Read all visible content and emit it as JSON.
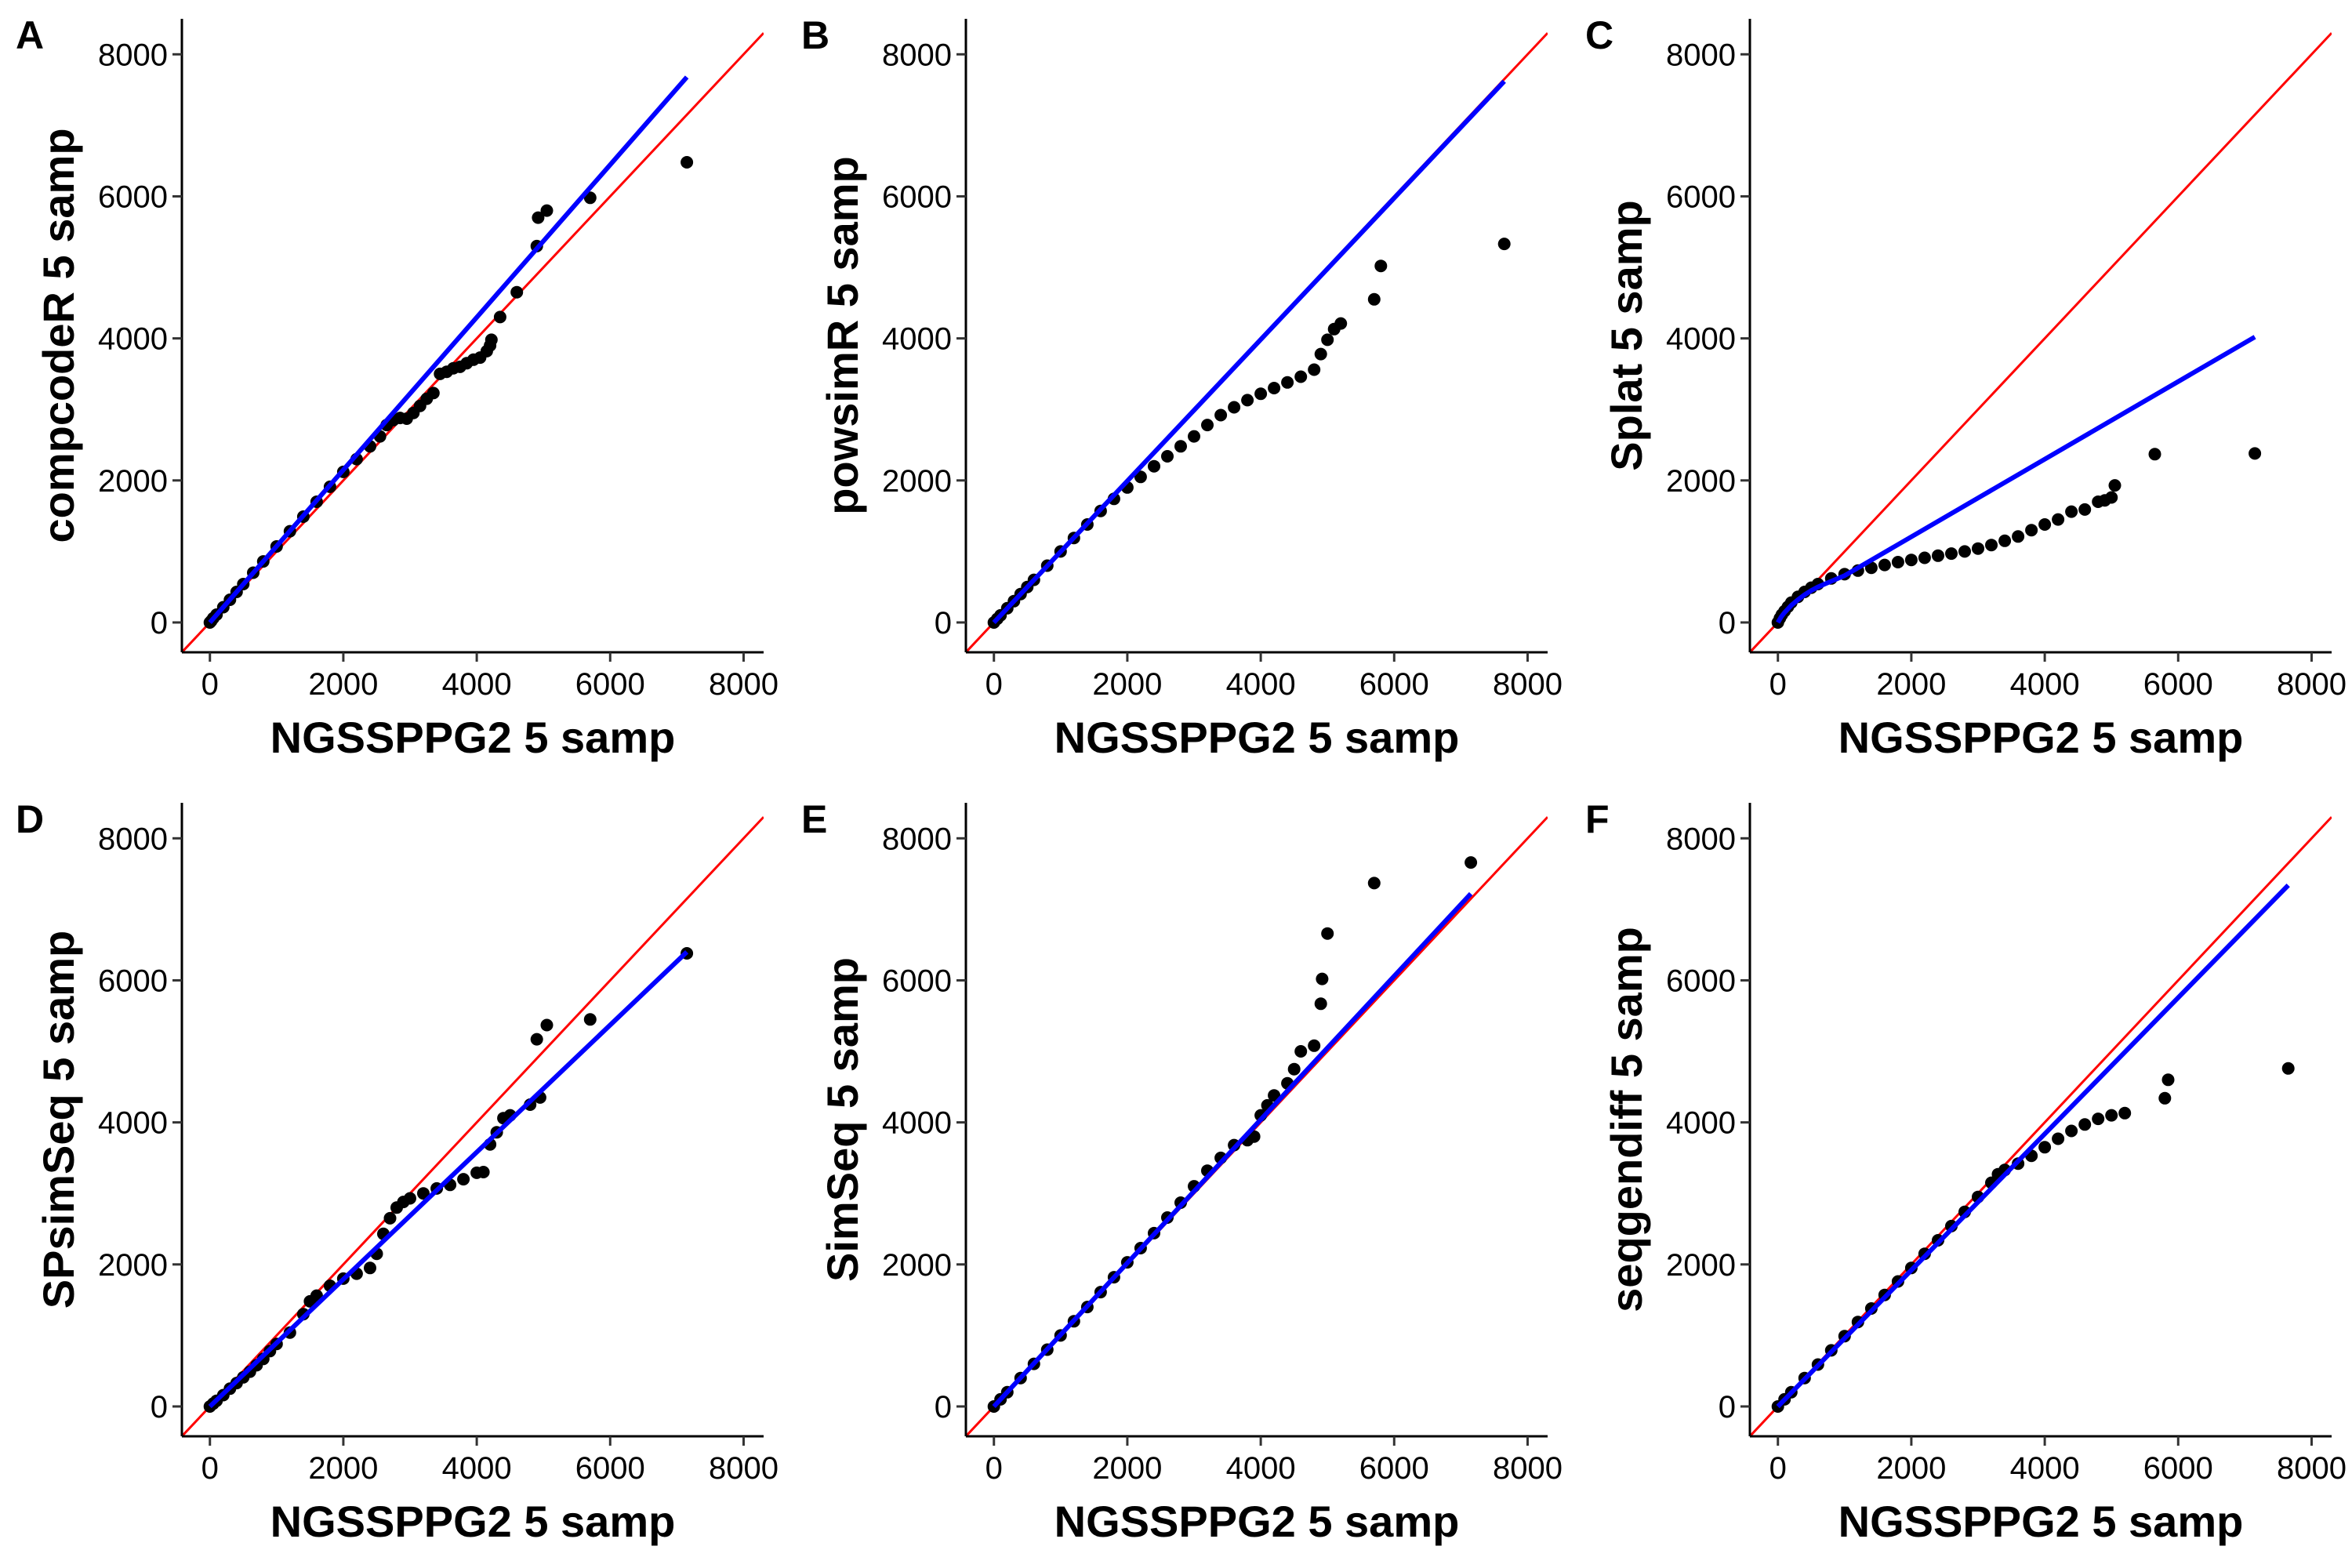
{
  "figure": {
    "colors": {
      "points": "#000000",
      "identity_line": "#ff0000",
      "fit_line": "#0000ff",
      "background": "#ffffff"
    }
  },
  "chart_data": [
    {
      "type": "scatter",
      "panel": "A",
      "xlabel": "NGSSPPG2 5 samp",
      "ylabel": "compcodeR 5 samp",
      "xlim": [
        -420,
        8300
      ],
      "ylim": [
        -420,
        8500
      ],
      "xticks": [
        "0",
        "2000",
        "4000",
        "6000",
        "8000"
      ],
      "yticks": [
        "0",
        "2000",
        "4000",
        "6000",
        "8000"
      ],
      "grid": false,
      "reference_line": {
        "slope": 1,
        "intercept": 0
      },
      "fit_line": {
        "x": [
          0,
          7150
        ],
        "y": [
          0,
          7680
        ]
      },
      "points": [
        [
          0,
          0
        ],
        [
          20,
          20
        ],
        [
          50,
          60
        ],
        [
          100,
          110
        ],
        [
          200,
          215
        ],
        [
          300,
          320
        ],
        [
          400,
          430
        ],
        [
          500,
          540
        ],
        [
          650,
          700
        ],
        [
          800,
          860
        ],
        [
          1000,
          1070
        ],
        [
          1200,
          1285
        ],
        [
          1400,
          1490
        ],
        [
          1600,
          1700
        ],
        [
          1800,
          1910
        ],
        [
          2000,
          2120
        ],
        [
          2200,
          2300
        ],
        [
          2400,
          2480
        ],
        [
          2550,
          2620
        ],
        [
          2650,
          2780
        ],
        [
          2750,
          2850
        ],
        [
          2850,
          2880
        ],
        [
          2950,
          2870
        ],
        [
          3050,
          2950
        ],
        [
          3150,
          3050
        ],
        [
          3250,
          3150
        ],
        [
          3350,
          3230
        ],
        [
          3450,
          3500
        ],
        [
          3550,
          3530
        ],
        [
          3650,
          3580
        ],
        [
          3750,
          3600
        ],
        [
          3850,
          3650
        ],
        [
          3950,
          3700
        ],
        [
          4050,
          3730
        ],
        [
          4150,
          3820
        ],
        [
          4200,
          3900
        ],
        [
          4220,
          3980
        ],
        [
          4350,
          4300
        ],
        [
          4600,
          4650
        ],
        [
          4900,
          5300
        ],
        [
          4920,
          5700
        ],
        [
          5050,
          5800
        ],
        [
          5700,
          5980
        ],
        [
          7150,
          6480
        ]
      ]
    },
    {
      "type": "scatter",
      "panel": "B",
      "xlabel": "NGSSPPG2 5 samp",
      "ylabel": "powsimR 5 samp",
      "xlim": [
        -420,
        8300
      ],
      "ylim": [
        -420,
        8500
      ],
      "xticks": [
        "0",
        "2000",
        "4000",
        "6000",
        "8000"
      ],
      "yticks": [
        "0",
        "2000",
        "4000",
        "6000",
        "8000"
      ],
      "grid": false,
      "reference_line": {
        "slope": 1,
        "intercept": 0
      },
      "fit_line": {
        "x": [
          0,
          7650
        ],
        "y": [
          0,
          7620
        ]
      },
      "points": [
        [
          0,
          0
        ],
        [
          50,
          50
        ],
        [
          100,
          100
        ],
        [
          200,
          200
        ],
        [
          300,
          300
        ],
        [
          400,
          400
        ],
        [
          500,
          500
        ],
        [
          600,
          600
        ],
        [
          800,
          800
        ],
        [
          1000,
          1000
        ],
        [
          1200,
          1190
        ],
        [
          1400,
          1380
        ],
        [
          1600,
          1570
        ],
        [
          1800,
          1740
        ],
        [
          2000,
          1900
        ],
        [
          2200,
          2050
        ],
        [
          2400,
          2200
        ],
        [
          2600,
          2340
        ],
        [
          2800,
          2480
        ],
        [
          3000,
          2620
        ],
        [
          3200,
          2780
        ],
        [
          3400,
          2920
        ],
        [
          3600,
          3030
        ],
        [
          3800,
          3130
        ],
        [
          4000,
          3220
        ],
        [
          4200,
          3300
        ],
        [
          4400,
          3380
        ],
        [
          4600,
          3460
        ],
        [
          4800,
          3560
        ],
        [
          4900,
          3780
        ],
        [
          5000,
          3980
        ],
        [
          5100,
          4130
        ],
        [
          5200,
          4210
        ],
        [
          5700,
          4550
        ],
        [
          5800,
          5020
        ],
        [
          7650,
          5330
        ]
      ]
    },
    {
      "type": "scatter",
      "panel": "C",
      "xlabel": "NGSSPPG2 5 samp",
      "ylabel": "Splat 5 samp",
      "xlim": [
        -420,
        8300
      ],
      "ylim": [
        -420,
        8500
      ],
      "xticks": [
        "0",
        "2000",
        "4000",
        "6000",
        "8000"
      ],
      "yticks": [
        "0",
        "2000",
        "4000",
        "6000",
        "8000"
      ],
      "grid": false,
      "reference_line": {
        "slope": 1,
        "intercept": 0
      },
      "fit_line": {
        "x": [
          0,
          50,
          100,
          200,
          300,
          400,
          500,
          600,
          700,
          800,
          1000,
          7150
        ],
        "y": [
          0,
          80,
          140,
          240,
          320,
          390,
          450,
          500,
          540,
          580,
          660,
          4020
        ]
      },
      "points": [
        [
          0,
          0
        ],
        [
          30,
          60
        ],
        [
          60,
          110
        ],
        [
          100,
          160
        ],
        [
          150,
          220
        ],
        [
          200,
          280
        ],
        [
          300,
          360
        ],
        [
          400,
          430
        ],
        [
          500,
          490
        ],
        [
          600,
          540
        ],
        [
          800,
          620
        ],
        [
          1000,
          680
        ],
        [
          1200,
          730
        ],
        [
          1400,
          770
        ],
        [
          1600,
          810
        ],
        [
          1800,
          850
        ],
        [
          2000,
          880
        ],
        [
          2200,
          910
        ],
        [
          2400,
          940
        ],
        [
          2600,
          970
        ],
        [
          2800,
          1000
        ],
        [
          3000,
          1040
        ],
        [
          3200,
          1090
        ],
        [
          3400,
          1150
        ],
        [
          3600,
          1210
        ],
        [
          3800,
          1300
        ],
        [
          4000,
          1380
        ],
        [
          4200,
          1450
        ],
        [
          4400,
          1560
        ],
        [
          4600,
          1590
        ],
        [
          4800,
          1700
        ],
        [
          4900,
          1720
        ],
        [
          5000,
          1760
        ],
        [
          5050,
          1930
        ],
        [
          5650,
          2370
        ],
        [
          7150,
          2380
        ]
      ]
    },
    {
      "type": "scatter",
      "panel": "D",
      "xlabel": "NGSSPPG2 5 samp",
      "ylabel": "SPsimSeq 5 samp",
      "xlim": [
        -420,
        8300
      ],
      "ylim": [
        -420,
        8500
      ],
      "xticks": [
        "0",
        "2000",
        "4000",
        "6000",
        "8000"
      ],
      "yticks": [
        "0",
        "2000",
        "4000",
        "6000",
        "8000"
      ],
      "grid": false,
      "reference_line": {
        "slope": 1,
        "intercept": 0
      },
      "fit_line": {
        "x": [
          0,
          7150
        ],
        "y": [
          0,
          6400
        ]
      },
      "points": [
        [
          0,
          0
        ],
        [
          50,
          40
        ],
        [
          100,
          80
        ],
        [
          200,
          160
        ],
        [
          300,
          250
        ],
        [
          400,
          330
        ],
        [
          500,
          410
        ],
        [
          600,
          490
        ],
        [
          700,
          580
        ],
        [
          800,
          670
        ],
        [
          900,
          780
        ],
        [
          1000,
          880
        ],
        [
          1200,
          1040
        ],
        [
          1400,
          1300
        ],
        [
          1500,
          1480
        ],
        [
          1600,
          1560
        ],
        [
          1800,
          1700
        ],
        [
          2000,
          1800
        ],
        [
          2200,
          1870
        ],
        [
          2400,
          1950
        ],
        [
          2500,
          2150
        ],
        [
          2600,
          2430
        ],
        [
          2700,
          2650
        ],
        [
          2800,
          2800
        ],
        [
          2900,
          2880
        ],
        [
          3000,
          2930
        ],
        [
          3200,
          3000
        ],
        [
          3400,
          3070
        ],
        [
          3600,
          3120
        ],
        [
          3800,
          3200
        ],
        [
          4000,
          3290
        ],
        [
          4100,
          3300
        ],
        [
          4200,
          3690
        ],
        [
          4300,
          3860
        ],
        [
          4400,
          4060
        ],
        [
          4500,
          4100
        ],
        [
          4800,
          4250
        ],
        [
          4950,
          4350
        ],
        [
          4900,
          5170
        ],
        [
          5050,
          5370
        ],
        [
          5700,
          5450
        ],
        [
          7150,
          6380
        ]
      ]
    },
    {
      "type": "scatter",
      "panel": "E",
      "xlabel": "NGSSPPG2 5 samp",
      "ylabel": "SimSeq 5 samp",
      "xlim": [
        -420,
        8300
      ],
      "ylim": [
        -420,
        8500
      ],
      "xticks": [
        "0",
        "2000",
        "4000",
        "6000",
        "8000"
      ],
      "yticks": [
        "0",
        "2000",
        "4000",
        "6000",
        "8000"
      ],
      "grid": false,
      "reference_line": {
        "slope": 1,
        "intercept": 0
      },
      "fit_line": {
        "x": [
          0,
          7150
        ],
        "y": [
          0,
          7220
        ]
      },
      "points": [
        [
          0,
          0
        ],
        [
          100,
          100
        ],
        [
          200,
          200
        ],
        [
          400,
          400
        ],
        [
          600,
          600
        ],
        [
          800,
          800
        ],
        [
          1000,
          1000
        ],
        [
          1200,
          1200
        ],
        [
          1400,
          1400
        ],
        [
          1600,
          1610
        ],
        [
          1800,
          1820
        ],
        [
          2000,
          2030
        ],
        [
          2200,
          2230
        ],
        [
          2400,
          2440
        ],
        [
          2600,
          2660
        ],
        [
          2800,
          2870
        ],
        [
          3000,
          3100
        ],
        [
          3200,
          3320
        ],
        [
          3400,
          3500
        ],
        [
          3600,
          3680
        ],
        [
          3800,
          3750
        ],
        [
          3900,
          3800
        ],
        [
          4000,
          4100
        ],
        [
          4100,
          4240
        ],
        [
          4200,
          4380
        ],
        [
          4400,
          4550
        ],
        [
          4500,
          4750
        ],
        [
          4600,
          5000
        ],
        [
          4800,
          5080
        ],
        [
          4900,
          5670
        ],
        [
          4920,
          6020
        ],
        [
          5000,
          6660
        ],
        [
          5700,
          7370
        ],
        [
          7150,
          7660
        ]
      ]
    },
    {
      "type": "scatter",
      "panel": "F",
      "xlabel": "NGSSPPG2 5 samp",
      "ylabel": "seqgendiff 5 samp",
      "xlim": [
        -420,
        8300
      ],
      "ylim": [
        -420,
        8500
      ],
      "xticks": [
        "0",
        "2000",
        "4000",
        "6000",
        "8000"
      ],
      "yticks": [
        "0",
        "2000",
        "4000",
        "6000",
        "8000"
      ],
      "grid": false,
      "reference_line": {
        "slope": 1,
        "intercept": 0
      },
      "fit_line": {
        "x": [
          0,
          7650
        ],
        "y": [
          0,
          7340
        ]
      },
      "points": [
        [
          0,
          0
        ],
        [
          100,
          100
        ],
        [
          200,
          200
        ],
        [
          400,
          400
        ],
        [
          600,
          590
        ],
        [
          800,
          790
        ],
        [
          1000,
          990
        ],
        [
          1200,
          1190
        ],
        [
          1400,
          1380
        ],
        [
          1600,
          1570
        ],
        [
          1800,
          1760
        ],
        [
          2000,
          1950
        ],
        [
          2200,
          2150
        ],
        [
          2400,
          2340
        ],
        [
          2600,
          2540
        ],
        [
          2800,
          2740
        ],
        [
          3000,
          2950
        ],
        [
          3200,
          3150
        ],
        [
          3300,
          3270
        ],
        [
          3400,
          3330
        ],
        [
          3600,
          3420
        ],
        [
          3800,
          3530
        ],
        [
          4000,
          3650
        ],
        [
          4200,
          3770
        ],
        [
          4400,
          3880
        ],
        [
          4600,
          3970
        ],
        [
          4800,
          4050
        ],
        [
          5000,
          4100
        ],
        [
          5200,
          4130
        ],
        [
          5800,
          4340
        ],
        [
          5850,
          4600
        ],
        [
          7650,
          4760
        ]
      ]
    }
  ]
}
